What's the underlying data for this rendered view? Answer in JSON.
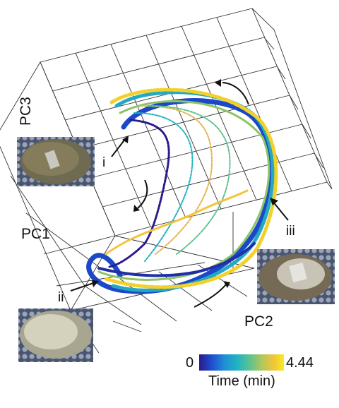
{
  "chart_data": {
    "type": "line",
    "subtype": "3d-trajectory",
    "axes": {
      "x": "PC1",
      "y": "PC2",
      "z": "PC3"
    },
    "colorbar": {
      "label": "Time (min)",
      "min_label": "0",
      "max_label": "4.44",
      "range": [
        0,
        4.44
      ],
      "colors": [
        "#2b1a8c",
        "#1f4fd1",
        "#1f8fd6",
        "#22b3c2",
        "#5fc28f",
        "#b7c75a",
        "#f2c53a",
        "#f7ec1e"
      ]
    },
    "annotations": [
      "i",
      "ii",
      "iii"
    ],
    "grid": true,
    "inset_images": 3
  }
}
